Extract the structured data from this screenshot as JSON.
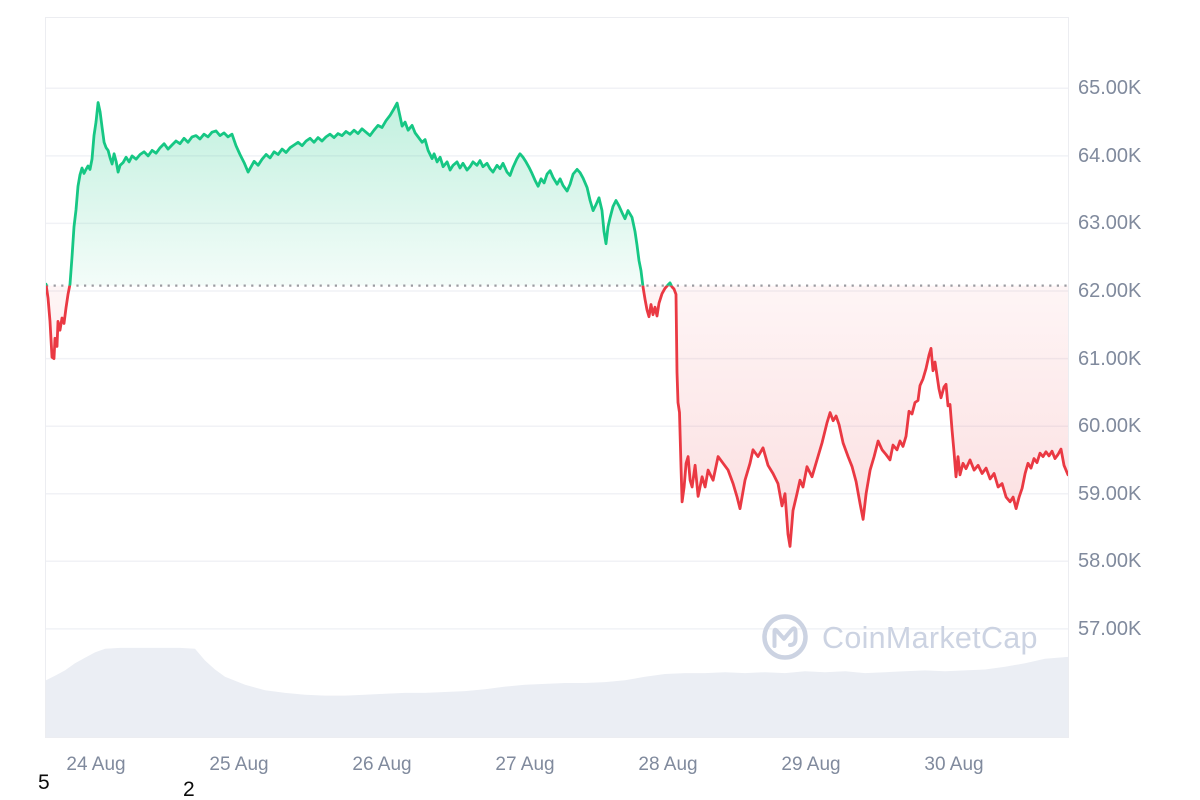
{
  "watermark": {
    "text": "CoinMarketCap"
  },
  "annotations": {
    "left_digit": "5",
    "mid_digit": "2"
  },
  "colors": {
    "up": "#16C784",
    "down": "#EA3943",
    "axis_label": "#808A9D",
    "gridline": "#F1F2F6",
    "baseline_dots": "#9B9BA1",
    "volume_fill": "#EBEEF4",
    "watermark": "#CCD3E2",
    "card_border": "#ECEDF1",
    "stray_text": "#0B0B0B"
  },
  "chart_data": {
    "type": "line",
    "description": "Bitcoin price (USD, thousands) 24-30 Aug with volume silhouette",
    "x_axis": {
      "domain_days": [
        -0.35,
        6.797
      ],
      "ticks": [
        {
          "days": 0,
          "label": "24 Aug"
        },
        {
          "days": 1,
          "label": "25 Aug"
        },
        {
          "days": 2,
          "label": "26 Aug"
        },
        {
          "days": 3,
          "label": "27 Aug"
        },
        {
          "days": 4,
          "label": "28 Aug"
        },
        {
          "days": 5,
          "label": "29 Aug"
        },
        {
          "days": 6,
          "label": "30 Aug"
        }
      ]
    },
    "y_axis": {
      "domain": [
        55.4,
        66.04
      ],
      "unit": "K",
      "ticks": [
        {
          "value": 65,
          "label": "65.00K"
        },
        {
          "value": 64,
          "label": "64.00K"
        },
        {
          "value": 63,
          "label": "63.00K"
        },
        {
          "value": 62,
          "label": "62.00K"
        },
        {
          "value": 61,
          "label": "61.00K"
        },
        {
          "value": 60,
          "label": "60.00K"
        },
        {
          "value": 59,
          "label": "59.00K"
        },
        {
          "value": 58,
          "label": "58.00K"
        },
        {
          "value": 57,
          "label": "57.00K"
        }
      ]
    },
    "baseline": {
      "price": 62.08,
      "style": "dotted"
    },
    "price_points": [
      [
        -0.35,
        62.1
      ],
      [
        -0.336,
        61.9
      ],
      [
        -0.322,
        61.55
      ],
      [
        -0.308,
        61.02
      ],
      [
        -0.294,
        61.0
      ],
      [
        -0.287,
        61.3
      ],
      [
        -0.273,
        61.18
      ],
      [
        -0.266,
        61.55
      ],
      [
        -0.252,
        61.42
      ],
      [
        -0.238,
        61.6
      ],
      [
        -0.224,
        61.52
      ],
      [
        -0.21,
        61.75
      ],
      [
        -0.196,
        61.95
      ],
      [
        -0.182,
        62.1
      ],
      [
        -0.168,
        62.5
      ],
      [
        -0.154,
        62.95
      ],
      [
        -0.14,
        63.2
      ],
      [
        -0.126,
        63.55
      ],
      [
        -0.112,
        63.72
      ],
      [
        -0.098,
        63.82
      ],
      [
        -0.084,
        63.74
      ],
      [
        -0.07,
        63.8
      ],
      [
        -0.056,
        63.85
      ],
      [
        -0.042,
        63.8
      ],
      [
        -0.028,
        63.95
      ],
      [
        -0.014,
        64.3
      ],
      [
        0,
        64.5
      ],
      [
        0.014,
        64.79
      ],
      [
        0.028,
        64.65
      ],
      [
        0.042,
        64.42
      ],
      [
        0.056,
        64.2
      ],
      [
        0.07,
        64.12
      ],
      [
        0.084,
        64.08
      ],
      [
        0.098,
        63.97
      ],
      [
        0.112,
        63.88
      ],
      [
        0.126,
        64.03
      ],
      [
        0.14,
        63.92
      ],
      [
        0.154,
        63.76
      ],
      [
        0.168,
        63.86
      ],
      [
        0.189,
        63.9
      ],
      [
        0.21,
        63.98
      ],
      [
        0.231,
        63.91
      ],
      [
        0.252,
        64.0
      ],
      [
        0.28,
        63.95
      ],
      [
        0.308,
        64.02
      ],
      [
        0.336,
        64.06
      ],
      [
        0.364,
        64.0
      ],
      [
        0.392,
        64.08
      ],
      [
        0.42,
        64.04
      ],
      [
        0.448,
        64.12
      ],
      [
        0.476,
        64.18
      ],
      [
        0.503,
        64.1
      ],
      [
        0.531,
        64.16
      ],
      [
        0.559,
        64.22
      ],
      [
        0.587,
        64.18
      ],
      [
        0.615,
        64.26
      ],
      [
        0.643,
        64.2
      ],
      [
        0.671,
        64.28
      ],
      [
        0.699,
        64.3
      ],
      [
        0.727,
        64.25
      ],
      [
        0.755,
        64.32
      ],
      [
        0.783,
        64.28
      ],
      [
        0.811,
        64.35
      ],
      [
        0.839,
        64.37
      ],
      [
        0.867,
        64.3
      ],
      [
        0.895,
        64.34
      ],
      [
        0.923,
        64.28
      ],
      [
        0.951,
        64.32
      ],
      [
        0.979,
        64.15
      ],
      [
        1.007,
        64.02
      ],
      [
        1.035,
        63.9
      ],
      [
        1.063,
        63.76
      ],
      [
        1.084,
        63.84
      ],
      [
        1.105,
        63.92
      ],
      [
        1.133,
        63.86
      ],
      [
        1.161,
        63.95
      ],
      [
        1.189,
        64.02
      ],
      [
        1.217,
        63.97
      ],
      [
        1.245,
        64.06
      ],
      [
        1.273,
        64.02
      ],
      [
        1.301,
        64.1
      ],
      [
        1.329,
        64.05
      ],
      [
        1.357,
        64.12
      ],
      [
        1.385,
        64.16
      ],
      [
        1.413,
        64.2
      ],
      [
        1.441,
        64.15
      ],
      [
        1.469,
        64.22
      ],
      [
        1.497,
        64.26
      ],
      [
        1.524,
        64.2
      ],
      [
        1.552,
        64.27
      ],
      [
        1.58,
        64.22
      ],
      [
        1.608,
        64.28
      ],
      [
        1.636,
        64.32
      ],
      [
        1.664,
        64.27
      ],
      [
        1.692,
        64.33
      ],
      [
        1.72,
        64.3
      ],
      [
        1.748,
        64.36
      ],
      [
        1.776,
        64.32
      ],
      [
        1.804,
        64.38
      ],
      [
        1.832,
        64.33
      ],
      [
        1.86,
        64.4
      ],
      [
        1.888,
        64.35
      ],
      [
        1.916,
        64.3
      ],
      [
        1.944,
        64.38
      ],
      [
        1.972,
        64.45
      ],
      [
        2.0,
        64.42
      ],
      [
        2.028,
        64.52
      ],
      [
        2.056,
        64.6
      ],
      [
        2.084,
        64.7
      ],
      [
        2.105,
        64.78
      ],
      [
        2.126,
        64.58
      ],
      [
        2.14,
        64.44
      ],
      [
        2.161,
        64.5
      ],
      [
        2.182,
        64.38
      ],
      [
        2.21,
        64.45
      ],
      [
        2.231,
        64.34
      ],
      [
        2.252,
        64.28
      ],
      [
        2.28,
        64.2
      ],
      [
        2.301,
        64.24
      ],
      [
        2.322,
        64.08
      ],
      [
        2.35,
        63.96
      ],
      [
        2.364,
        64.03
      ],
      [
        2.385,
        63.91
      ],
      [
        2.406,
        63.98
      ],
      [
        2.427,
        63.84
      ],
      [
        2.455,
        63.91
      ],
      [
        2.476,
        63.79
      ],
      [
        2.497,
        63.86
      ],
      [
        2.524,
        63.91
      ],
      [
        2.545,
        63.82
      ],
      [
        2.566,
        63.89
      ],
      [
        2.594,
        63.79
      ],
      [
        2.615,
        63.84
      ],
      [
        2.636,
        63.91
      ],
      [
        2.664,
        63.86
      ],
      [
        2.685,
        63.93
      ],
      [
        2.706,
        63.84
      ],
      [
        2.734,
        63.89
      ],
      [
        2.755,
        63.81
      ],
      [
        2.776,
        63.76
      ],
      [
        2.804,
        63.86
      ],
      [
        2.825,
        63.81
      ],
      [
        2.846,
        63.89
      ],
      [
        2.874,
        63.76
      ],
      [
        2.895,
        63.71
      ],
      [
        2.916,
        63.83
      ],
      [
        2.944,
        63.96
      ],
      [
        2.965,
        64.03
      ],
      [
        2.986,
        63.98
      ],
      [
        3.007,
        63.91
      ],
      [
        3.028,
        63.83
      ],
      [
        3.049,
        63.74
      ],
      [
        3.07,
        63.64
      ],
      [
        3.091,
        63.55
      ],
      [
        3.112,
        63.66
      ],
      [
        3.133,
        63.6
      ],
      [
        3.154,
        63.73
      ],
      [
        3.175,
        63.78
      ],
      [
        3.196,
        63.68
      ],
      [
        3.224,
        63.58
      ],
      [
        3.245,
        63.66
      ],
      [
        3.266,
        63.56
      ],
      [
        3.294,
        63.48
      ],
      [
        3.315,
        63.58
      ],
      [
        3.336,
        63.73
      ],
      [
        3.364,
        63.8
      ],
      [
        3.385,
        63.75
      ],
      [
        3.406,
        63.67
      ],
      [
        3.434,
        63.53
      ],
      [
        3.455,
        63.34
      ],
      [
        3.476,
        63.19
      ],
      [
        3.497,
        63.28
      ],
      [
        3.517,
        63.38
      ],
      [
        3.538,
        63.19
      ],
      [
        3.552,
        62.88
      ],
      [
        3.566,
        62.7
      ],
      [
        3.58,
        62.95
      ],
      [
        3.594,
        63.08
      ],
      [
        3.615,
        63.25
      ],
      [
        3.636,
        63.34
      ],
      [
        3.657,
        63.26
      ],
      [
        3.678,
        63.16
      ],
      [
        3.699,
        63.07
      ],
      [
        3.72,
        63.19
      ],
      [
        3.748,
        63.09
      ],
      [
        3.769,
        62.88
      ],
      [
        3.783,
        62.68
      ],
      [
        3.797,
        62.45
      ],
      [
        3.811,
        62.3
      ],
      [
        3.825,
        62.06
      ],
      [
        3.839,
        61.88
      ],
      [
        3.853,
        61.72
      ],
      [
        3.867,
        61.62
      ],
      [
        3.881,
        61.8
      ],
      [
        3.895,
        61.65
      ],
      [
        3.909,
        61.76
      ],
      [
        3.923,
        61.63
      ],
      [
        3.937,
        61.82
      ],
      [
        3.958,
        61.96
      ],
      [
        3.979,
        62.04
      ],
      [
        4.0,
        62.09
      ],
      [
        4.014,
        62.12
      ],
      [
        4.028,
        62.06
      ],
      [
        4.042,
        62.03
      ],
      [
        4.056,
        61.95
      ],
      [
        4.063,
        60.8
      ],
      [
        4.07,
        60.35
      ],
      [
        4.08,
        60.2
      ],
      [
        4.091,
        59.4
      ],
      [
        4.098,
        58.88
      ],
      [
        4.112,
        59.1
      ],
      [
        4.126,
        59.45
      ],
      [
        4.14,
        59.55
      ],
      [
        4.154,
        59.2
      ],
      [
        4.168,
        59.1
      ],
      [
        4.189,
        59.42
      ],
      [
        4.21,
        58.96
      ],
      [
        4.238,
        59.25
      ],
      [
        4.259,
        59.1
      ],
      [
        4.28,
        59.35
      ],
      [
        4.315,
        59.2
      ],
      [
        4.35,
        59.55
      ],
      [
        4.385,
        59.45
      ],
      [
        4.42,
        59.35
      ],
      [
        4.455,
        59.15
      ],
      [
        4.483,
        58.95
      ],
      [
        4.503,
        58.78
      ],
      [
        4.538,
        59.2
      ],
      [
        4.573,
        59.45
      ],
      [
        4.594,
        59.65
      ],
      [
        4.629,
        59.55
      ],
      [
        4.664,
        59.68
      ],
      [
        4.699,
        59.42
      ],
      [
        4.734,
        59.3
      ],
      [
        4.769,
        59.15
      ],
      [
        4.797,
        58.82
      ],
      [
        4.818,
        59.0
      ],
      [
        4.839,
        58.4
      ],
      [
        4.853,
        58.22
      ],
      [
        4.874,
        58.75
      ],
      [
        4.902,
        59.0
      ],
      [
        4.923,
        59.2
      ],
      [
        4.944,
        59.1
      ],
      [
        4.972,
        59.4
      ],
      [
        5.007,
        59.25
      ],
      [
        5.042,
        59.5
      ],
      [
        5.077,
        59.75
      ],
      [
        5.112,
        60.05
      ],
      [
        5.133,
        60.2
      ],
      [
        5.154,
        60.08
      ],
      [
        5.175,
        60.15
      ],
      [
        5.196,
        60.02
      ],
      [
        5.224,
        59.75
      ],
      [
        5.259,
        59.55
      ],
      [
        5.287,
        59.4
      ],
      [
        5.315,
        59.18
      ],
      [
        5.343,
        58.85
      ],
      [
        5.364,
        58.62
      ],
      [
        5.385,
        59.0
      ],
      [
        5.413,
        59.35
      ],
      [
        5.441,
        59.55
      ],
      [
        5.469,
        59.78
      ],
      [
        5.497,
        59.65
      ],
      [
        5.524,
        59.58
      ],
      [
        5.552,
        59.5
      ],
      [
        5.573,
        59.72
      ],
      [
        5.601,
        59.65
      ],
      [
        5.622,
        59.78
      ],
      [
        5.643,
        59.7
      ],
      [
        5.664,
        59.85
      ],
      [
        5.685,
        60.22
      ],
      [
        5.706,
        60.18
      ],
      [
        5.727,
        60.35
      ],
      [
        5.748,
        60.38
      ],
      [
        5.762,
        60.6
      ],
      [
        5.783,
        60.7
      ],
      [
        5.804,
        60.85
      ],
      [
        5.825,
        61.05
      ],
      [
        5.839,
        61.15
      ],
      [
        5.853,
        60.82
      ],
      [
        5.867,
        60.95
      ],
      [
        5.881,
        60.75
      ],
      [
        5.895,
        60.55
      ],
      [
        5.909,
        60.42
      ],
      [
        5.93,
        60.58
      ],
      [
        5.944,
        60.62
      ],
      [
        5.958,
        60.3
      ],
      [
        5.972,
        60.32
      ],
      [
        5.986,
        59.95
      ],
      [
        6.0,
        59.62
      ],
      [
        6.014,
        59.25
      ],
      [
        6.028,
        59.55
      ],
      [
        6.042,
        59.28
      ],
      [
        6.063,
        59.45
      ],
      [
        6.084,
        59.37
      ],
      [
        6.112,
        59.5
      ],
      [
        6.14,
        59.35
      ],
      [
        6.168,
        59.42
      ],
      [
        6.196,
        59.3
      ],
      [
        6.224,
        59.38
      ],
      [
        6.252,
        59.22
      ],
      [
        6.28,
        59.3
      ],
      [
        6.308,
        59.1
      ],
      [
        6.336,
        59.15
      ],
      [
        6.364,
        58.95
      ],
      [
        6.392,
        58.88
      ],
      [
        6.413,
        58.95
      ],
      [
        6.434,
        58.78
      ],
      [
        6.455,
        58.95
      ],
      [
        6.476,
        59.08
      ],
      [
        6.497,
        59.3
      ],
      [
        6.517,
        59.45
      ],
      [
        6.538,
        59.38
      ],
      [
        6.559,
        59.52
      ],
      [
        6.58,
        59.46
      ],
      [
        6.601,
        59.6
      ],
      [
        6.622,
        59.55
      ],
      [
        6.643,
        59.62
      ],
      [
        6.664,
        59.56
      ],
      [
        6.685,
        59.63
      ],
      [
        6.706,
        59.52
      ],
      [
        6.727,
        59.58
      ],
      [
        6.748,
        59.66
      ],
      [
        6.769,
        59.42
      ],
      [
        6.797,
        59.28
      ]
    ],
    "volume_points_normalized": [
      [
        -0.35,
        0.63
      ],
      [
        -0.287,
        0.68
      ],
      [
        -0.217,
        0.74
      ],
      [
        -0.147,
        0.82
      ],
      [
        -0.077,
        0.88
      ],
      [
        -0.007,
        0.94
      ],
      [
        0.063,
        0.98
      ],
      [
        0.168,
        0.99
      ],
      [
        0.308,
        0.99
      ],
      [
        0.448,
        0.99
      ],
      [
        0.587,
        0.99
      ],
      [
        0.692,
        0.98
      ],
      [
        0.762,
        0.85
      ],
      [
        0.832,
        0.75
      ],
      [
        0.902,
        0.67
      ],
      [
        1.042,
        0.58
      ],
      [
        1.182,
        0.52
      ],
      [
        1.322,
        0.49
      ],
      [
        1.462,
        0.47
      ],
      [
        1.601,
        0.46
      ],
      [
        1.741,
        0.46
      ],
      [
        1.881,
        0.47
      ],
      [
        2.021,
        0.48
      ],
      [
        2.161,
        0.49
      ],
      [
        2.301,
        0.49
      ],
      [
        2.441,
        0.5
      ],
      [
        2.58,
        0.51
      ],
      [
        2.72,
        0.53
      ],
      [
        2.86,
        0.56
      ],
      [
        3.0,
        0.58
      ],
      [
        3.14,
        0.59
      ],
      [
        3.28,
        0.6
      ],
      [
        3.42,
        0.6
      ],
      [
        3.559,
        0.61
      ],
      [
        3.699,
        0.63
      ],
      [
        3.839,
        0.67
      ],
      [
        3.979,
        0.7
      ],
      [
        4.119,
        0.71
      ],
      [
        4.259,
        0.71
      ],
      [
        4.399,
        0.72
      ],
      [
        4.538,
        0.71
      ],
      [
        4.678,
        0.72
      ],
      [
        4.818,
        0.71
      ],
      [
        4.958,
        0.73
      ],
      [
        5.098,
        0.72
      ],
      [
        5.238,
        0.73
      ],
      [
        5.378,
        0.71
      ],
      [
        5.517,
        0.72
      ],
      [
        5.657,
        0.73
      ],
      [
        5.797,
        0.74
      ],
      [
        5.937,
        0.73
      ],
      [
        6.077,
        0.74
      ],
      [
        6.217,
        0.75
      ],
      [
        6.357,
        0.78
      ],
      [
        6.497,
        0.82
      ],
      [
        6.636,
        0.87
      ],
      [
        6.797,
        0.89
      ]
    ]
  }
}
